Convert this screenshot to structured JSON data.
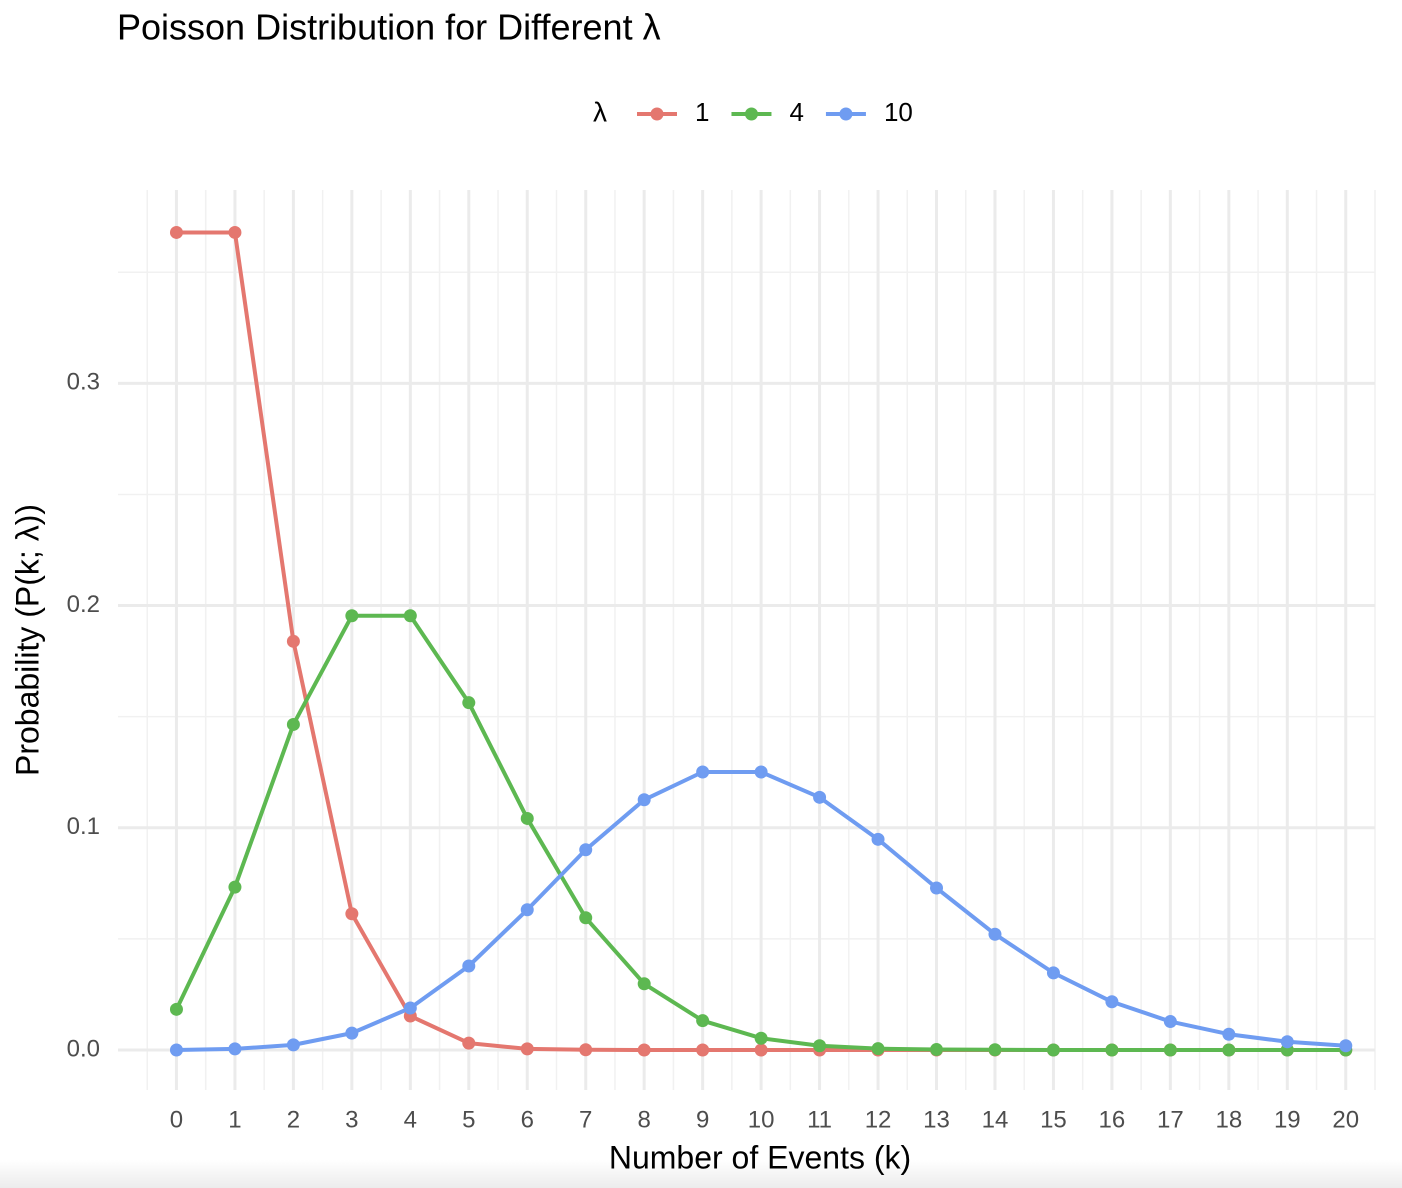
{
  "chart_data": {
    "type": "line",
    "title": "Poisson Distribution for Different λ",
    "x_label": "Number of Events (k)",
    "y_label": "Probability (P(k; λ))",
    "legend_title": "λ",
    "legend_position": "top",
    "grid": true,
    "x": [
      0,
      1,
      2,
      3,
      4,
      5,
      6,
      7,
      8,
      9,
      10,
      11,
      12,
      13,
      14,
      15,
      16,
      17,
      18,
      19,
      20
    ],
    "series": [
      {
        "name": "1",
        "color": "#e4776f",
        "values": [
          0.3679,
          0.3679,
          0.1839,
          0.0613,
          0.0153,
          0.0031,
          0.0005,
          0.0001,
          0,
          0,
          0,
          0,
          0,
          0,
          0,
          0,
          0,
          0,
          0,
          0,
          0
        ]
      },
      {
        "name": "4",
        "color": "#5db851",
        "values": [
          0.0183,
          0.0733,
          0.1465,
          0.1954,
          0.1954,
          0.1563,
          0.1042,
          0.0595,
          0.0298,
          0.0132,
          0.0053,
          0.0019,
          0.0006,
          0.0002,
          0.0001,
          0,
          0,
          0,
          0,
          0,
          0
        ]
      },
      {
        "name": "10",
        "color": "#6f9cf1",
        "values": [
          0,
          0.0005,
          0.0023,
          0.0076,
          0.0189,
          0.0378,
          0.0631,
          0.0901,
          0.1126,
          0.1251,
          0.1251,
          0.1137,
          0.0948,
          0.0729,
          0.0521,
          0.0347,
          0.0217,
          0.0128,
          0.0071,
          0.0037,
          0.0019
        ]
      }
    ],
    "xlim": [
      -1,
      20.5
    ],
    "xticks": [
      0,
      1,
      2,
      3,
      4,
      5,
      6,
      7,
      8,
      9,
      10,
      11,
      12,
      13,
      14,
      15,
      16,
      17,
      18,
      19,
      20
    ],
    "x_minor_ticks": [
      -0.5,
      0.5,
      1.5,
      2.5,
      3.5,
      4.5,
      5.5,
      6.5,
      7.5,
      8.5,
      9.5,
      10.5,
      11.5,
      12.5,
      13.5,
      14.5,
      15.5,
      16.5,
      17.5,
      18.5,
      19.5,
      20.5
    ],
    "ylim": [
      -0.018,
      0.387
    ],
    "yticks": [
      {
        "value": 0,
        "label": "0.0"
      },
      0.1,
      0.2,
      0.3
    ],
    "y_minor_ticks": [
      0.05,
      0.15,
      0.25,
      0.35
    ]
  }
}
